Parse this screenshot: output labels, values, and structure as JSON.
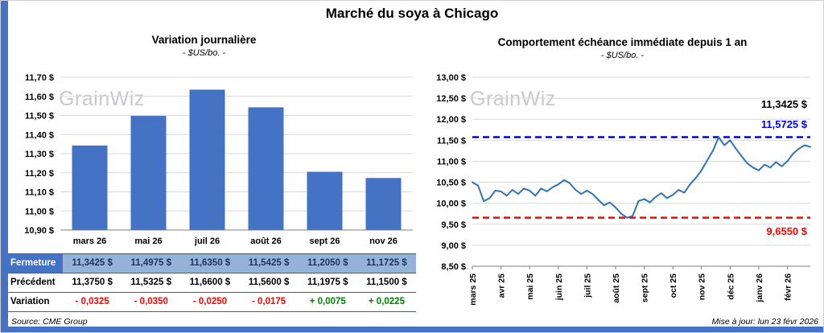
{
  "page": {
    "title": "Marché du soya à Chicago",
    "watermark": "GrainWiz",
    "source": "Source: CME Group",
    "updated": "Mise à jour: lun 23 févr 2026",
    "accent_color": "#4472C4"
  },
  "chart_data": [
    {
      "type": "bar",
      "title": "Variation journalière",
      "subtitle": "- $US/bo. -",
      "categories": [
        "mars 26",
        "mai 26",
        "juil 26",
        "août 26",
        "sept 26",
        "nov 26"
      ],
      "values": [
        11.3425,
        11.4975,
        11.635,
        11.5425,
        11.205,
        11.1725
      ],
      "ylim": [
        10.9,
        11.7
      ],
      "ytick_step": 0.1,
      "ylabel_suffix": " $",
      "bar_color": "#4472C4",
      "grid": true,
      "legend": "none"
    },
    {
      "type": "line",
      "title": "Comportement échéance immédiate depuis 1 an",
      "subtitle": "- $US/bo. -",
      "x_labels": [
        "mars 25",
        "avr 25",
        "mai 25",
        "juin 25",
        "juil 25",
        "août 25",
        "sept 25",
        "oct 25",
        "nov 25",
        "déc 25",
        "janv 26",
        "févr 26"
      ],
      "points_per_month": 5,
      "values": [
        10.5,
        10.42,
        10.05,
        10.12,
        10.3,
        10.28,
        10.18,
        10.32,
        10.22,
        10.35,
        10.3,
        10.18,
        10.35,
        10.28,
        10.38,
        10.45,
        10.55,
        10.48,
        10.32,
        10.22,
        10.3,
        10.22,
        10.08,
        9.95,
        10.02,
        9.9,
        9.75,
        9.655,
        9.7,
        10.05,
        10.1,
        10.02,
        10.15,
        10.24,
        10.12,
        10.2,
        10.32,
        10.25,
        10.45,
        10.6,
        10.78,
        11.02,
        11.25,
        11.5725,
        11.38,
        11.5,
        11.3,
        11.12,
        10.95,
        10.85,
        10.78,
        10.92,
        10.85,
        10.98,
        10.88,
        11.0,
        11.18,
        11.3,
        11.38,
        11.3425
      ],
      "ylim": [
        8.5,
        13.0
      ],
      "ytick_step": 0.5,
      "ylabel_suffix": " $",
      "line_color": "#2E75B6",
      "grid": true,
      "legend": "none",
      "reference_lines": [
        {
          "value": 11.5725,
          "label": "11,5725 $",
          "color": "#0000EE",
          "style": "dashed"
        },
        {
          "value": 9.655,
          "label": "9,6550 $",
          "color": "#FF0000",
          "style": "dashed"
        }
      ],
      "current_label": {
        "value": 11.3425,
        "label": "11,3425 $",
        "color": "#000000"
      }
    }
  ],
  "table": {
    "rows": [
      {
        "label": "Fermeture",
        "style": "close",
        "values": [
          "11,3425 $",
          "11,4975 $",
          "11,6350 $",
          "11,5425 $",
          "11,2050 $",
          "11,1725 $"
        ]
      },
      {
        "label": "Précédent",
        "style": "previous",
        "values": [
          "11,3750 $",
          "11,5325 $",
          "11,6600 $",
          "11,5600 $",
          "11,1975 $",
          "11,1500 $"
        ]
      },
      {
        "label": "Variation",
        "style": "variation",
        "values": [
          "- 0,0325",
          "- 0,0350",
          "- 0,0250",
          "- 0,0175",
          "+ 0,0075",
          "+ 0,0225"
        ]
      }
    ]
  }
}
